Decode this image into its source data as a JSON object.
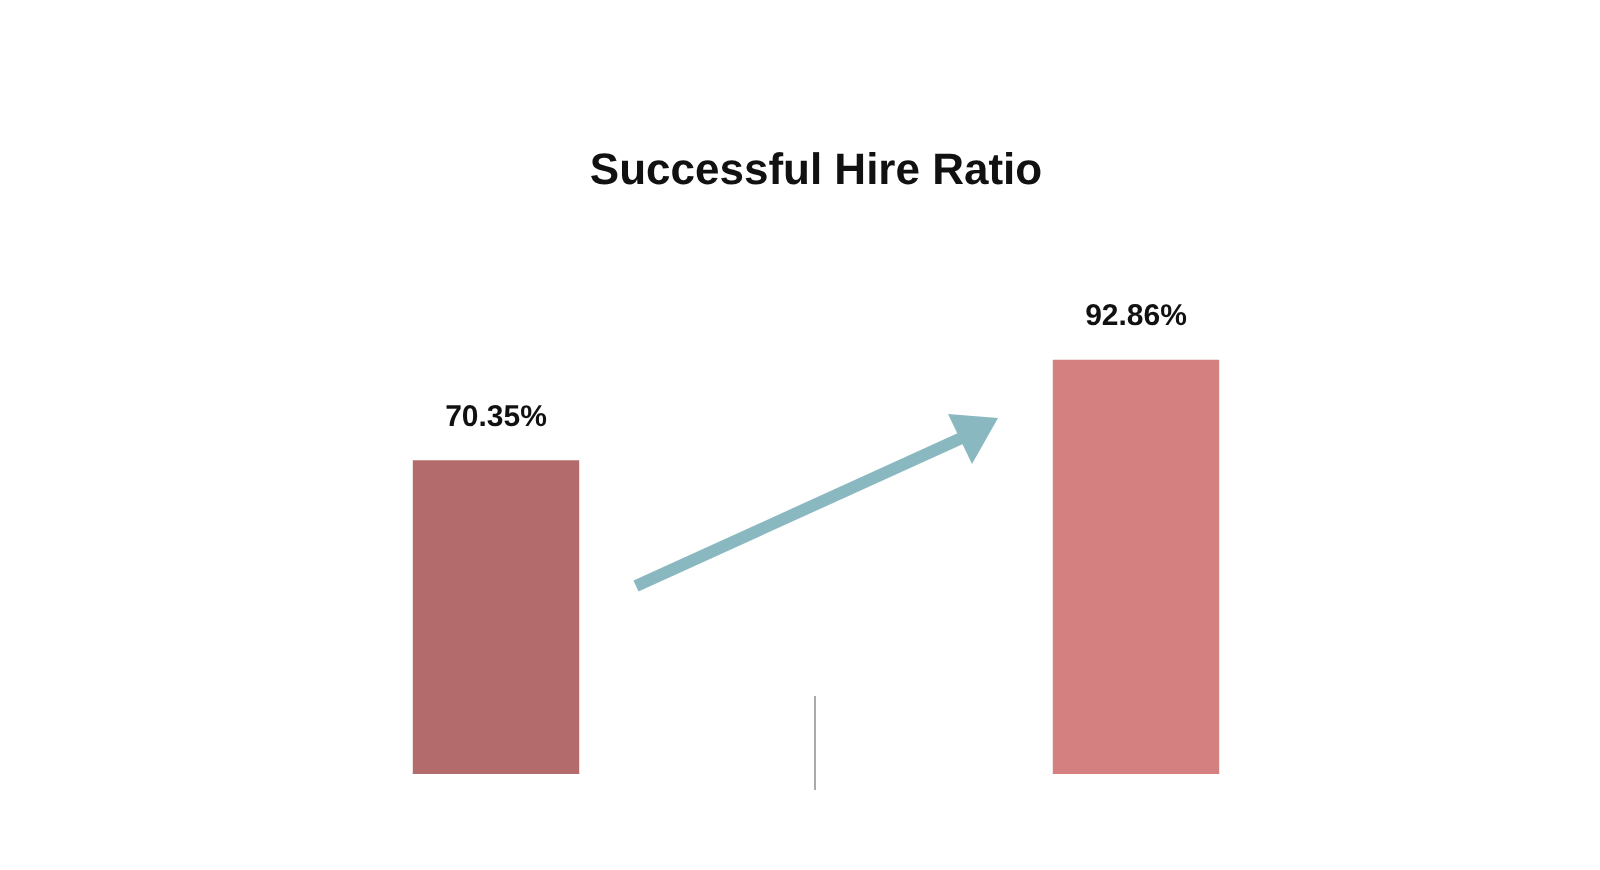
{
  "chart_data": {
    "type": "bar",
    "title": "Successful Hire Ratio",
    "categories": [
      null,
      null
    ],
    "values": [
      70.35,
      92.86
    ],
    "colors": [
      "#b36b6b",
      "#d48080"
    ],
    "value_labels": [
      "70.35%",
      "92.86%"
    ]
  }
}
